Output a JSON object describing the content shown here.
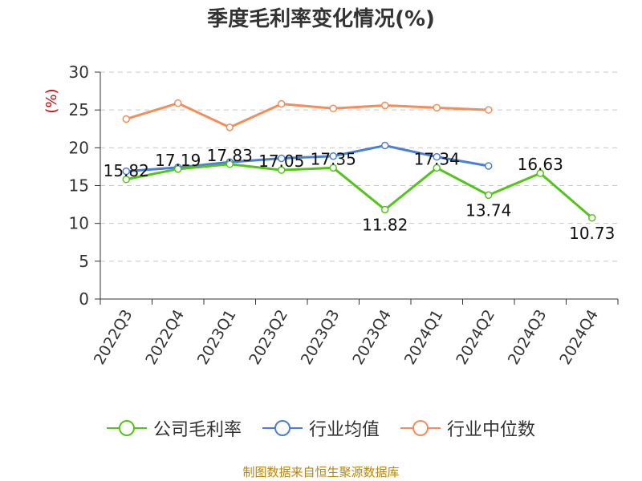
{
  "chart_data": {
    "type": "line",
    "title": "季度毛利率变化情况(%)",
    "ylabel": "(%)",
    "xlabel": "",
    "categories": [
      "2022Q3",
      "2022Q4",
      "2023Q1",
      "2023Q2",
      "2023Q3",
      "2023Q4",
      "2024Q1",
      "2024Q2",
      "2024Q3",
      "2024Q4"
    ],
    "ylim": [
      0,
      30
    ],
    "yticks": [
      0,
      5,
      10,
      15,
      20,
      25,
      30
    ],
    "grid": "horizontal-dashed",
    "legend_position": "bottom",
    "series": [
      {
        "name": "公司毛利率",
        "color": "#52c41a",
        "values": [
          15.82,
          17.19,
          17.83,
          17.05,
          17.35,
          11.82,
          17.34,
          13.74,
          16.63,
          10.73
        ],
        "labels": [
          "15.82",
          "17.19",
          "17.83",
          "17.05",
          "17.35",
          "11.82",
          "17.34",
          "13.74",
          "16.63",
          "10.73"
        ]
      },
      {
        "name": "行业均值",
        "color": "#4a7fd9",
        "values": [
          16.9,
          17.4,
          18.1,
          18.6,
          18.9,
          20.3,
          18.8,
          17.6,
          null,
          null
        ]
      },
      {
        "name": "行业中位数",
        "color": "#f58d5a",
        "values": [
          23.8,
          25.9,
          22.7,
          25.8,
          25.2,
          25.6,
          25.3,
          25.0,
          null,
          null
        ]
      }
    ]
  },
  "source": "制图数据来自恒生聚源数据库"
}
